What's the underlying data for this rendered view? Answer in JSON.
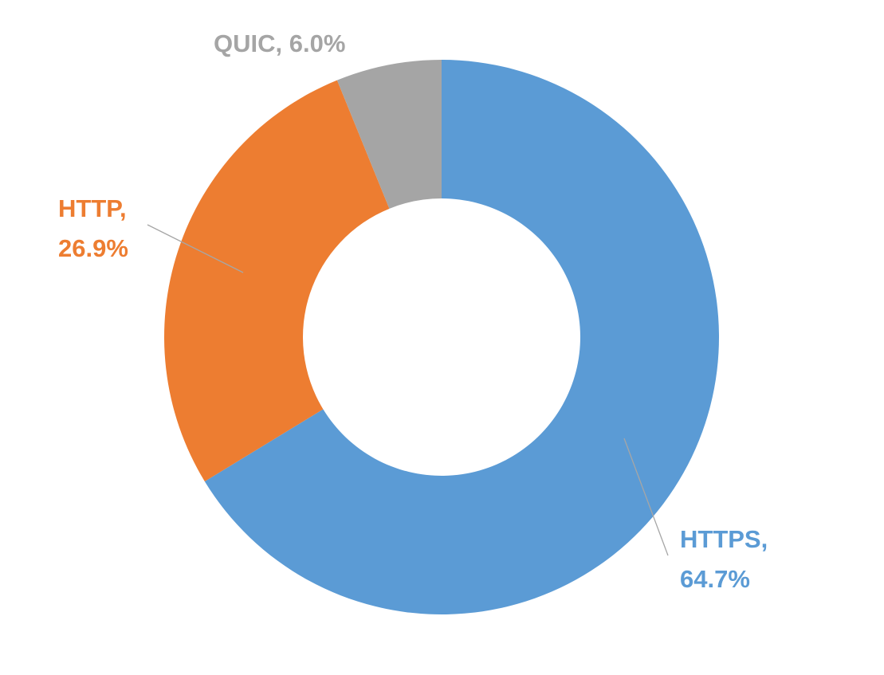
{
  "chart_data": {
    "type": "donut",
    "values": [
      64.7,
      26.9,
      6.0
    ],
    "value_labels": [
      "HTTPS, 64.7%",
      "HTTP, 26.9%",
      "QUIC, 6.0%"
    ],
    "colors": [
      "#5b9bd5",
      "#ed7d31",
      "#a5a5a5"
    ]
  }
}
